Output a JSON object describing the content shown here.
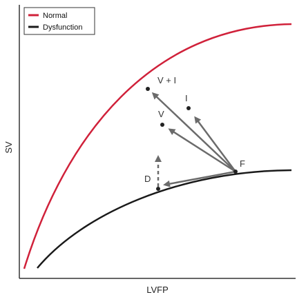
{
  "legend": {
    "items": [
      {
        "label": "Normal",
        "color": "#d0213a"
      },
      {
        "label": "Dysfunction",
        "color": "#1a1a1a"
      }
    ]
  },
  "axes": {
    "y_label": "SV",
    "x_label": "LVFP"
  },
  "points": {
    "F": "F",
    "V": "V",
    "I": "I",
    "VI": "V + I",
    "D": "D"
  },
  "colors": {
    "normal": "#d0213a",
    "dysfunction": "#1a1a1a",
    "arrow": "#6b6b6b",
    "axis": "#333333"
  }
}
